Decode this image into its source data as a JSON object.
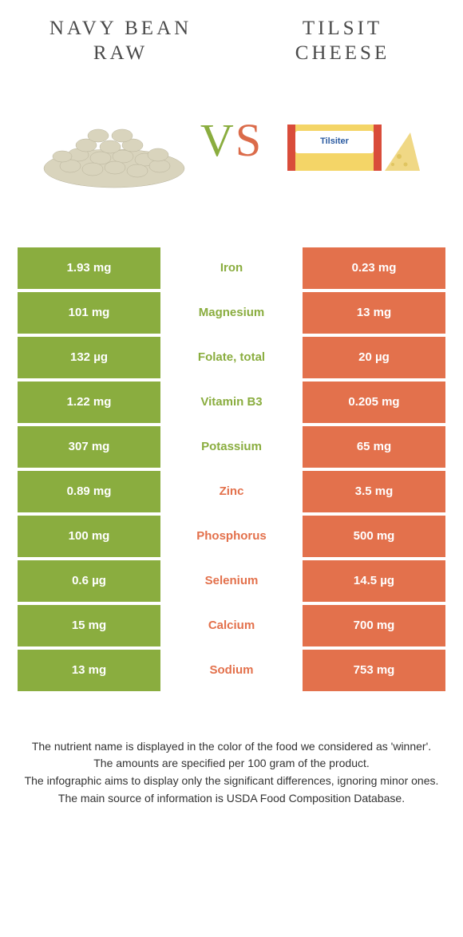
{
  "colors": {
    "green": "#8aad3f",
    "orange": "#e3714c",
    "text": "#4a4a4a"
  },
  "header": {
    "left_title": "NAVY BEAN\nRAW",
    "right_title": "TILSIT\nCHEESE",
    "vs_v": "V",
    "vs_s": "S"
  },
  "rows": [
    {
      "left": "1.93 mg",
      "name": "Iron",
      "right": "0.23 mg",
      "winner": "left"
    },
    {
      "left": "101 mg",
      "name": "Magnesium",
      "right": "13 mg",
      "winner": "left"
    },
    {
      "left": "132 µg",
      "name": "Folate, total",
      "right": "20 µg",
      "winner": "left"
    },
    {
      "left": "1.22 mg",
      "name": "Vitamin B3",
      "right": "0.205 mg",
      "winner": "left"
    },
    {
      "left": "307 mg",
      "name": "Potassium",
      "right": "65 mg",
      "winner": "left"
    },
    {
      "left": "0.89 mg",
      "name": "Zinc",
      "right": "3.5 mg",
      "winner": "right"
    },
    {
      "left": "100 mg",
      "name": "Phosphorus",
      "right": "500 mg",
      "winner": "right"
    },
    {
      "left": "0.6 µg",
      "name": "Selenium",
      "right": "14.5 µg",
      "winner": "right"
    },
    {
      "left": "15 mg",
      "name": "Calcium",
      "right": "700 mg",
      "winner": "right"
    },
    {
      "left": "13 mg",
      "name": "Sodium",
      "right": "753 mg",
      "winner": "right"
    }
  ],
  "footer": {
    "line1": "The nutrient name is displayed in the color of the food we considered as 'winner'.",
    "line2": "The amounts are specified per 100 gram of the product.",
    "line3": "The infographic aims to display only the significant differences, ignoring minor ones.",
    "line4": "The main source of information is USDA Food Composition Database."
  }
}
